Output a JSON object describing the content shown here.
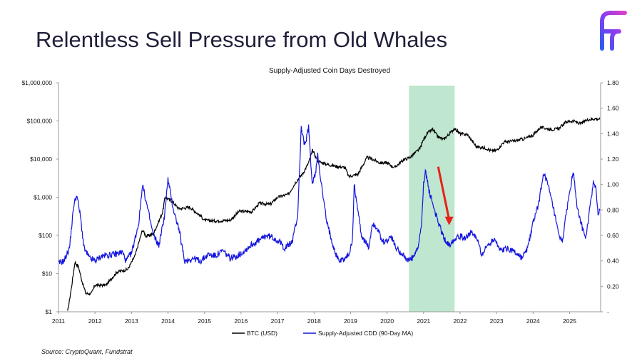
{
  "slide": {
    "title": "Relentless Sell Pressure from Old Whales",
    "source": "Source: CryptoQuant, Fundstrat",
    "logo_icon": "fundstrat-f-logo-icon",
    "logo_colors": [
      "#2b5cf0",
      "#8a3cf0",
      "#e040c8"
    ]
  },
  "chart_data": {
    "type": "line",
    "title": "Supply-Adjusted Coin Days Destroyed",
    "x_ticks": [
      "2011",
      "2012",
      "2013",
      "2014",
      "2015",
      "2016",
      "2017",
      "2018",
      "2019",
      "2020",
      "2021",
      "2022",
      "2023",
      "2024",
      "2025"
    ],
    "xlim": [
      2011.0,
      2025.85
    ],
    "y_left": {
      "scale": "log",
      "ylim": [
        1,
        1000000
      ],
      "ticks": [
        {
          "value": 1,
          "label": "$1"
        },
        {
          "value": 10,
          "label": "$10"
        },
        {
          "value": 100,
          "label": "$100"
        },
        {
          "value": 1000,
          "label": "$1,000"
        },
        {
          "value": 10000,
          "label": "$10,000"
        },
        {
          "value": 100000,
          "label": "$100,000"
        },
        {
          "value": 1000000,
          "label": "$1,000,000"
        }
      ]
    },
    "y_right": {
      "scale": "linear",
      "ylim": [
        0,
        1.8
      ],
      "ticks": [
        {
          "value": 0,
          "label": "-"
        },
        {
          "value": 0.2,
          "label": "0.20"
        },
        {
          "value": 0.4,
          "label": "0.40"
        },
        {
          "value": 0.6,
          "label": "0.60"
        },
        {
          "value": 0.8,
          "label": "0.80"
        },
        {
          "value": 1.0,
          "label": "1.00"
        },
        {
          "value": 1.2,
          "label": "1.20"
        },
        {
          "value": 1.4,
          "label": "1.40"
        },
        {
          "value": 1.6,
          "label": "1.60"
        },
        {
          "value": 1.8,
          "label": "1.80"
        }
      ]
    },
    "highlight": {
      "x_range": [
        2020.6,
        2021.85
      ],
      "color": "#bfe6cf"
    },
    "annotation_arrow": {
      "from": [
        2021.4,
        1.14
      ],
      "to": [
        2021.7,
        0.68
      ],
      "color": "#e8201a"
    },
    "series": [
      {
        "name": "BTC (USD)",
        "axis": "left",
        "color": "#000000",
        "points": [
          [
            2011.25,
            1
          ],
          [
            2011.35,
            4
          ],
          [
            2011.45,
            20
          ],
          [
            2011.55,
            15
          ],
          [
            2011.65,
            6
          ],
          [
            2011.75,
            3
          ],
          [
            2011.9,
            3
          ],
          [
            2012.0,
            5
          ],
          [
            2012.3,
            5
          ],
          [
            2012.6,
            11
          ],
          [
            2012.9,
            13
          ],
          [
            2013.1,
            30
          ],
          [
            2013.3,
            140
          ],
          [
            2013.4,
            95
          ],
          [
            2013.6,
            110
          ],
          [
            2013.85,
            400
          ],
          [
            2013.92,
            1000
          ],
          [
            2014.1,
            800
          ],
          [
            2014.3,
            500
          ],
          [
            2014.6,
            550
          ],
          [
            2014.9,
            320
          ],
          [
            2015.0,
            250
          ],
          [
            2015.3,
            240
          ],
          [
            2015.7,
            250
          ],
          [
            2015.95,
            430
          ],
          [
            2016.3,
            420
          ],
          [
            2016.5,
            700
          ],
          [
            2016.8,
            650
          ],
          [
            2017.0,
            1000
          ],
          [
            2017.3,
            1200
          ],
          [
            2017.5,
            2500
          ],
          [
            2017.7,
            4300
          ],
          [
            2017.85,
            8000
          ],
          [
            2017.96,
            17000
          ],
          [
            2018.1,
            9000
          ],
          [
            2018.3,
            7500
          ],
          [
            2018.6,
            6500
          ],
          [
            2018.85,
            6000
          ],
          [
            2018.95,
            3500
          ],
          [
            2019.2,
            4000
          ],
          [
            2019.45,
            11000
          ],
          [
            2019.6,
            10000
          ],
          [
            2019.8,
            8000
          ],
          [
            2020.0,
            8000
          ],
          [
            2020.2,
            6000
          ],
          [
            2020.45,
            9500
          ],
          [
            2020.65,
            11500
          ],
          [
            2020.9,
            19000
          ],
          [
            2021.0,
            33000
          ],
          [
            2021.1,
            48000
          ],
          [
            2021.25,
            60000
          ],
          [
            2021.4,
            38000
          ],
          [
            2021.55,
            33000
          ],
          [
            2021.7,
            45000
          ],
          [
            2021.85,
            64000
          ],
          [
            2022.0,
            46000
          ],
          [
            2022.2,
            44000
          ],
          [
            2022.45,
            21000
          ],
          [
            2022.7,
            19500
          ],
          [
            2022.85,
            16500
          ],
          [
            2023.0,
            17000
          ],
          [
            2023.2,
            28000
          ],
          [
            2023.5,
            30000
          ],
          [
            2023.8,
            35000
          ],
          [
            2024.0,
            43000
          ],
          [
            2024.2,
            68000
          ],
          [
            2024.5,
            60000
          ],
          [
            2024.7,
            62000
          ],
          [
            2024.9,
            95000
          ],
          [
            2025.1,
            100000
          ],
          [
            2025.3,
            85000
          ],
          [
            2025.5,
            108000
          ],
          [
            2025.7,
            115000
          ],
          [
            2025.83,
            112000
          ]
        ]
      },
      {
        "name": "Supply-Adjusted CDD (90-Day MA)",
        "axis": "right",
        "color": "#1515e0",
        "points": [
          [
            2011.0,
            0.38
          ],
          [
            2011.15,
            0.4
          ],
          [
            2011.3,
            0.5
          ],
          [
            2011.42,
            0.84
          ],
          [
            2011.5,
            0.92
          ],
          [
            2011.6,
            0.75
          ],
          [
            2011.7,
            0.5
          ],
          [
            2011.85,
            0.42
          ],
          [
            2012.0,
            0.4
          ],
          [
            2012.2,
            0.44
          ],
          [
            2012.5,
            0.45
          ],
          [
            2012.75,
            0.47
          ],
          [
            2012.85,
            0.4
          ],
          [
            2013.0,
            0.46
          ],
          [
            2013.2,
            0.7
          ],
          [
            2013.3,
            1.0
          ],
          [
            2013.45,
            0.8
          ],
          [
            2013.6,
            0.6
          ],
          [
            2013.75,
            0.52
          ],
          [
            2013.9,
            0.75
          ],
          [
            2014.0,
            1.04
          ],
          [
            2014.15,
            0.8
          ],
          [
            2014.3,
            0.65
          ],
          [
            2014.45,
            0.4
          ],
          [
            2014.7,
            0.42
          ],
          [
            2014.9,
            0.4
          ],
          [
            2015.1,
            0.45
          ],
          [
            2015.3,
            0.44
          ],
          [
            2015.5,
            0.48
          ],
          [
            2015.7,
            0.42
          ],
          [
            2015.9,
            0.44
          ],
          [
            2016.1,
            0.48
          ],
          [
            2016.3,
            0.53
          ],
          [
            2016.5,
            0.56
          ],
          [
            2016.7,
            0.6
          ],
          [
            2016.9,
            0.58
          ],
          [
            2017.05,
            0.55
          ],
          [
            2017.2,
            0.5
          ],
          [
            2017.4,
            0.55
          ],
          [
            2017.55,
            0.75
          ],
          [
            2017.65,
            1.45
          ],
          [
            2017.75,
            1.3
          ],
          [
            2017.85,
            1.45
          ],
          [
            2017.95,
            1.0
          ],
          [
            2018.05,
            1.1
          ],
          [
            2018.1,
            1.25
          ],
          [
            2018.2,
            1.0
          ],
          [
            2018.35,
            0.7
          ],
          [
            2018.5,
            0.55
          ],
          [
            2018.6,
            0.45
          ],
          [
            2018.7,
            0.4
          ],
          [
            2018.85,
            0.42
          ],
          [
            2018.95,
            0.45
          ],
          [
            2019.05,
            0.55
          ],
          [
            2019.1,
            1.0
          ],
          [
            2019.2,
            0.8
          ],
          [
            2019.3,
            0.6
          ],
          [
            2019.5,
            0.5
          ],
          [
            2019.6,
            0.7
          ],
          [
            2019.75,
            0.65
          ],
          [
            2019.85,
            0.55
          ],
          [
            2020.0,
            0.55
          ],
          [
            2020.1,
            0.6
          ],
          [
            2020.25,
            0.5
          ],
          [
            2020.45,
            0.45
          ],
          [
            2020.55,
            0.4
          ],
          [
            2020.7,
            0.42
          ],
          [
            2020.85,
            0.5
          ],
          [
            2020.95,
            0.7
          ],
          [
            2021.0,
            1.0
          ],
          [
            2021.05,
            1.12
          ],
          [
            2021.15,
            0.95
          ],
          [
            2021.3,
            0.8
          ],
          [
            2021.5,
            0.62
          ],
          [
            2021.6,
            0.56
          ],
          [
            2021.7,
            0.52
          ],
          [
            2021.8,
            0.56
          ],
          [
            2021.95,
            0.6
          ],
          [
            2022.1,
            0.58
          ],
          [
            2022.3,
            0.62
          ],
          [
            2022.45,
            0.58
          ],
          [
            2022.6,
            0.45
          ],
          [
            2022.75,
            0.52
          ],
          [
            2022.95,
            0.58
          ],
          [
            2023.1,
            0.48
          ],
          [
            2023.3,
            0.5
          ],
          [
            2023.5,
            0.47
          ],
          [
            2023.7,
            0.42
          ],
          [
            2023.85,
            0.5
          ],
          [
            2024.0,
            0.7
          ],
          [
            2024.15,
            0.85
          ],
          [
            2024.3,
            1.1
          ],
          [
            2024.4,
            1.0
          ],
          [
            2024.55,
            0.82
          ],
          [
            2024.7,
            0.6
          ],
          [
            2024.8,
            0.55
          ],
          [
            2024.95,
            0.85
          ],
          [
            2025.1,
            1.1
          ],
          [
            2025.2,
            0.85
          ],
          [
            2025.35,
            0.65
          ],
          [
            2025.45,
            0.58
          ],
          [
            2025.55,
            0.8
          ],
          [
            2025.65,
            1.02
          ],
          [
            2025.72,
            0.98
          ],
          [
            2025.78,
            0.76
          ],
          [
            2025.83,
            0.8
          ]
        ]
      }
    ]
  }
}
